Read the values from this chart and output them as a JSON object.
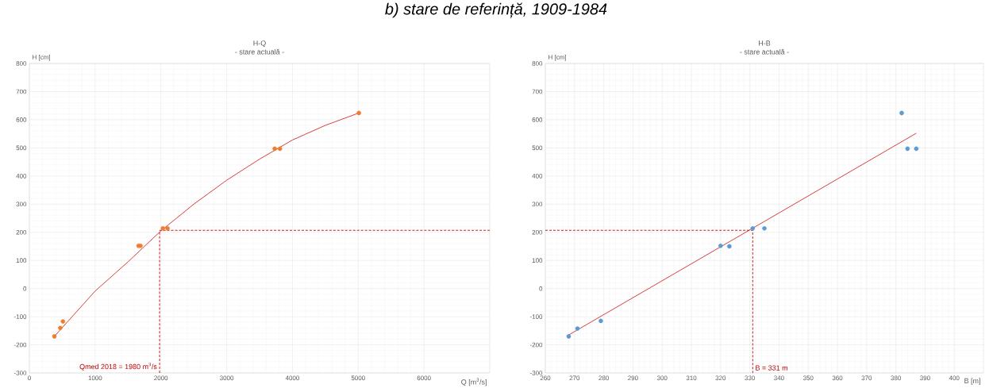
{
  "chart_data": [
    {
      "type": "scatter",
      "title": "H-Q",
      "subtitle": "- stare actuală -",
      "xlabel": "Q [m$^{3}$/s]",
      "ylabel": "H [cm]",
      "annotations": [
        "b) stare de referință, 1909-1984",
        {
          "text": "Qmed 2018 = 1980 m$^{3}$/s",
          "x": 1980,
          "y": -300
        }
      ],
      "xlim": [
        0,
        7000
      ],
      "xticks": [
        0,
        1000,
        2000,
        3000,
        4000,
        5000,
        6000
      ],
      "ylim": [
        -300,
        800
      ],
      "yticks": [
        -300,
        -200,
        -100,
        0,
        100,
        200,
        300,
        400,
        500,
        600,
        700,
        800
      ],
      "grid": true,
      "series": [
        {
          "color": "#ed7d31",
          "marker": "circle",
          "x": [
            380,
            470,
            510,
            1660,
            1690,
            2030,
            2100,
            3730,
            3810,
            5010
          ],
          "values": [
            -170,
            -140,
            -117,
            152,
            152,
            214,
            214,
            497,
            497,
            624
          ]
        },
        {
          "type": "line",
          "color": "#d62828",
          "marker": "none",
          "x": [
            380,
            1000,
            1500,
            2000,
            2500,
            3000,
            3500,
            4000,
            4500,
            5010
          ],
          "values": [
            -170,
            -9,
            95,
            205,
            300,
            385,
            460,
            528,
            580,
            624
          ]
        },
        {
          "type": "line",
          "color": "#c00000",
          "marker": "none",
          "line_style": "dashed",
          "x": [
            1980,
            1980,
            7000
          ],
          "values": [
            -300,
            207,
            207
          ]
        }
      ]
    },
    {
      "type": "scatter",
      "title": "H-B",
      "subtitle": "- stare actuală -",
      "xlabel": "B [m]",
      "ylabel": "H [cm]",
      "annotations": [
        {
          "text": "B = 331 m",
          "x": 331,
          "y": -300
        }
      ],
      "xlim": [
        260,
        410
      ],
      "xticks": [
        260,
        270,
        280,
        290,
        300,
        310,
        320,
        330,
        340,
        350,
        360,
        370,
        380,
        390,
        400
      ],
      "ylim": [
        -300,
        800
      ],
      "yticks": [
        -300,
        -200,
        -100,
        0,
        100,
        200,
        300,
        400,
        500,
        600,
        700,
        800
      ],
      "grid": true,
      "series": [
        {
          "color": "#5b9bd5",
          "marker": "circle",
          "x": [
            268,
            271,
            279,
            320,
            323,
            331,
            335,
            382,
            384,
            387
          ],
          "values": [
            -170,
            -142,
            -115,
            152,
            150,
            214,
            214,
            624,
            497,
            497
          ]
        },
        {
          "type": "line",
          "color": "#d62828",
          "marker": "none",
          "x": [
            268,
            387
          ],
          "values": [
            -165,
            552
          ]
        },
        {
          "type": "line",
          "color": "#c00000",
          "marker": "none",
          "line_style": "dashed",
          "x": [
            260,
            331,
            331
          ],
          "values": [
            207,
            207,
            -300
          ]
        }
      ]
    }
  ]
}
